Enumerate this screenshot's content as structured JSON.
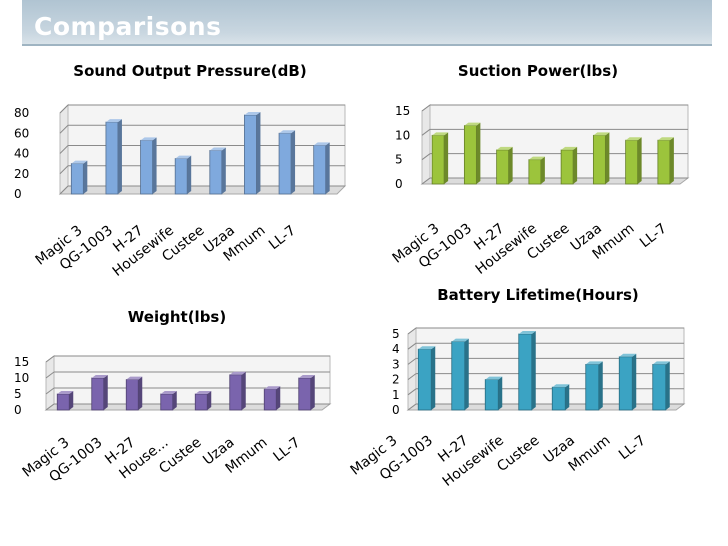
{
  "slide": {
    "title": "Comparisons"
  },
  "chart_data": [
    {
      "type": "bar",
      "title": "Sound Output Pressure(dB)",
      "categories": [
        "Magic 3",
        "QG-1003",
        "H-27",
        "Housewife",
        "Custee",
        "Uzaa",
        "Mmum",
        "LL-7"
      ],
      "values": [
        30,
        71,
        53,
        35,
        43,
        78,
        60,
        48
      ],
      "yticks": [
        "0",
        "20",
        "40",
        "60",
        "80"
      ],
      "ylim": [
        0,
        80
      ],
      "color": "#7fa9dd"
    },
    {
      "type": "bar",
      "title": "Suction Power(lbs)",
      "categories": [
        "Magic 3",
        "QG-1003",
        "H-27",
        "Housewife",
        "Custee",
        "Uzaa",
        "Mmum",
        "LL-7"
      ],
      "values": [
        10,
        12,
        7,
        5,
        7,
        10,
        9,
        9
      ],
      "yticks": [
        "0",
        "5",
        "10",
        "15"
      ],
      "ylim": [
        0,
        15
      ],
      "color": "#9cc43c"
    },
    {
      "type": "bar",
      "title": "Weight(lbs)",
      "categories": [
        "Magic 3",
        "QG-1003",
        "H-27",
        "House...",
        "Custee",
        "Uzaa",
        "Mmum",
        "LL-7"
      ],
      "values": [
        5,
        10,
        9.5,
        5,
        5,
        11,
        6.5,
        10
      ],
      "yticks": [
        "0",
        "5",
        "10",
        "15"
      ],
      "ylim": [
        0,
        15
      ],
      "color": "#7a64ad"
    },
    {
      "type": "bar",
      "title": "Battery Lifetime(Hours)",
      "categories": [
        "Magic 3",
        "QG-1003",
        "H-27",
        "Housewife",
        "Custee",
        "Uzaa",
        "Mmum",
        "LL-7"
      ],
      "values": [
        4,
        4.5,
        2,
        5,
        1.5,
        3,
        3.5,
        3
      ],
      "yticks": [
        "0",
        "1",
        "2",
        "3",
        "4",
        "5"
      ],
      "ylim": [
        0,
        5
      ],
      "color": "#3ba3c3"
    }
  ]
}
